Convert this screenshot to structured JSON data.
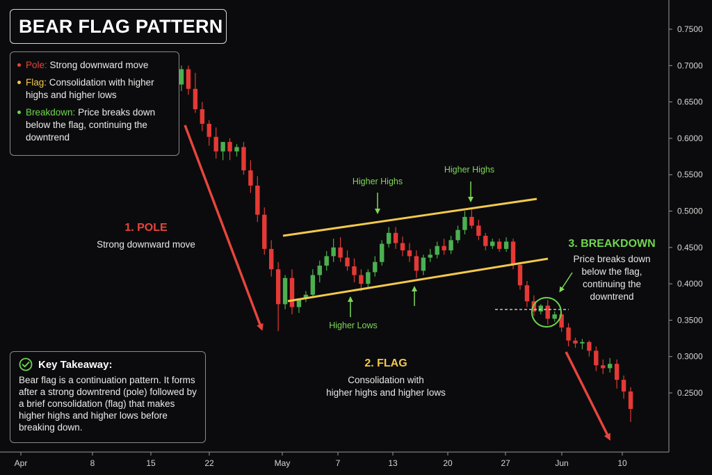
{
  "title": "BEAR FLAG PATTERN",
  "legend": {
    "items": [
      {
        "key": "Pole:",
        "text": "Strong downward move",
        "color": "#e8453c"
      },
      {
        "key": "Flag:",
        "text": "Consolidation with higher highs and higher lows",
        "color": "#f2c94c"
      },
      {
        "key": "Breakdown:",
        "text": "Price breaks down below the flag, continuing the downtrend",
        "color": "#6fd64f"
      }
    ]
  },
  "annotations": {
    "pole": {
      "head": "1. POLE",
      "sub": "Strong downward move",
      "color": "#e8453c"
    },
    "flag": {
      "head": "2. FLAG",
      "sub1": "Consolidation with",
      "sub2": "higher highs and higher lows",
      "color": "#f2c94c"
    },
    "breakdown": {
      "head": "3. BREAKDOWN",
      "sub1": "Price breaks down",
      "sub2": "below the flag,",
      "sub3": "continuing the",
      "sub4": "downtrend",
      "color": "#6fd64f"
    },
    "higher_highs_1": "Higher Highs",
    "higher_highs_2": "Higher Highs",
    "higher_lows": "Higher Lows"
  },
  "takeaway": {
    "head": "Key Takeaway:",
    "body": "Bear flag is a continuation pattern. It forms after a strong downtrend (pole) followed by a brief consolidation (flag) that makes higher highs and higher lows before breaking down."
  },
  "colors": {
    "up": "#4caf50",
    "down": "#e53935",
    "flagline": "#f2c94c",
    "arrow": "#e8453c",
    "accent_green": "#6fd64f",
    "bg": "#0b0b0d"
  },
  "chart_data": {
    "type": "candlestick",
    "x_ticks": [
      "Apr",
      "8",
      "15",
      "22",
      "May",
      "7",
      "13",
      "20",
      "27",
      "Jun",
      "10"
    ],
    "y_ticks": [
      "0.7500",
      "0.7000",
      "0.6500",
      "0.6000",
      "0.5500",
      "0.5000",
      "0.4500",
      "0.4000",
      "0.3500",
      "0.3000",
      "0.2500"
    ],
    "ylim": [
      0.2,
      0.78
    ],
    "grid": false,
    "candles": [
      {
        "o": 0.674,
        "h": 0.7,
        "c": 0.695,
        "l": 0.665
      },
      {
        "o": 0.695,
        "h": 0.7,
        "c": 0.668,
        "l": 0.66
      },
      {
        "o": 0.668,
        "h": 0.69,
        "c": 0.64,
        "l": 0.635
      },
      {
        "o": 0.64,
        "h": 0.65,
        "c": 0.62,
        "l": 0.61
      },
      {
        "o": 0.62,
        "h": 0.625,
        "c": 0.602,
        "l": 0.59
      },
      {
        "o": 0.602,
        "h": 0.615,
        "c": 0.582,
        "l": 0.572
      },
      {
        "o": 0.582,
        "h": 0.595,
        "c": 0.595,
        "l": 0.57
      },
      {
        "o": 0.595,
        "h": 0.6,
        "c": 0.582,
        "l": 0.57
      },
      {
        "o": 0.582,
        "h": 0.592,
        "c": 0.588,
        "l": 0.575
      },
      {
        "o": 0.588,
        "h": 0.595,
        "c": 0.556,
        "l": 0.55
      },
      {
        "o": 0.556,
        "h": 0.57,
        "c": 0.535,
        "l": 0.525
      },
      {
        "o": 0.535,
        "h": 0.548,
        "c": 0.495,
        "l": 0.485
      },
      {
        "o": 0.495,
        "h": 0.505,
        "c": 0.448,
        "l": 0.44
      },
      {
        "o": 0.448,
        "h": 0.46,
        "c": 0.42,
        "l": 0.41
      },
      {
        "o": 0.42,
        "h": 0.43,
        "c": 0.372,
        "l": 0.335
      },
      {
        "o": 0.372,
        "h": 0.412,
        "c": 0.408,
        "l": 0.365
      },
      {
        "o": 0.408,
        "h": 0.42,
        "c": 0.368,
        "l": 0.358
      },
      {
        "o": 0.368,
        "h": 0.38,
        "c": 0.38,
        "l": 0.36
      },
      {
        "o": 0.38,
        "h": 0.39,
        "c": 0.385,
        "l": 0.375
      },
      {
        "o": 0.385,
        "h": 0.42,
        "c": 0.412,
        "l": 0.383
      },
      {
        "o": 0.412,
        "h": 0.432,
        "c": 0.425,
        "l": 0.402
      },
      {
        "o": 0.425,
        "h": 0.445,
        "c": 0.438,
        "l": 0.418
      },
      {
        "o": 0.438,
        "h": 0.462,
        "c": 0.45,
        "l": 0.43
      },
      {
        "o": 0.45,
        "h": 0.464,
        "c": 0.436,
        "l": 0.43
      },
      {
        "o": 0.436,
        "h": 0.446,
        "c": 0.424,
        "l": 0.418
      },
      {
        "o": 0.424,
        "h": 0.435,
        "c": 0.412,
        "l": 0.402
      },
      {
        "o": 0.412,
        "h": 0.42,
        "c": 0.4,
        "l": 0.39
      },
      {
        "o": 0.4,
        "h": 0.42,
        "c": 0.416,
        "l": 0.395
      },
      {
        "o": 0.416,
        "h": 0.438,
        "c": 0.43,
        "l": 0.41
      },
      {
        "o": 0.43,
        "h": 0.46,
        "c": 0.455,
        "l": 0.425
      },
      {
        "o": 0.455,
        "h": 0.478,
        "c": 0.47,
        "l": 0.45
      },
      {
        "o": 0.47,
        "h": 0.478,
        "c": 0.456,
        "l": 0.448
      },
      {
        "o": 0.456,
        "h": 0.465,
        "c": 0.446,
        "l": 0.438
      },
      {
        "o": 0.446,
        "h": 0.456,
        "c": 0.438,
        "l": 0.43
      },
      {
        "o": 0.438,
        "h": 0.446,
        "c": 0.418,
        "l": 0.408
      },
      {
        "o": 0.418,
        "h": 0.44,
        "c": 0.436,
        "l": 0.412
      },
      {
        "o": 0.436,
        "h": 0.448,
        "c": 0.44,
        "l": 0.43
      },
      {
        "o": 0.44,
        "h": 0.458,
        "c": 0.452,
        "l": 0.435
      },
      {
        "o": 0.452,
        "h": 0.462,
        "c": 0.446,
        "l": 0.44
      },
      {
        "o": 0.446,
        "h": 0.466,
        "c": 0.46,
        "l": 0.441
      },
      {
        "o": 0.46,
        "h": 0.48,
        "c": 0.474,
        "l": 0.456
      },
      {
        "o": 0.474,
        "h": 0.5,
        "c": 0.492,
        "l": 0.468
      },
      {
        "o": 0.492,
        "h": 0.502,
        "c": 0.48,
        "l": 0.476
      },
      {
        "o": 0.48,
        "h": 0.488,
        "c": 0.466,
        "l": 0.46
      },
      {
        "o": 0.466,
        "h": 0.47,
        "c": 0.452,
        "l": 0.446
      },
      {
        "o": 0.452,
        "h": 0.462,
        "c": 0.458,
        "l": 0.448
      },
      {
        "o": 0.458,
        "h": 0.462,
        "c": 0.448,
        "l": 0.444
      },
      {
        "o": 0.448,
        "h": 0.464,
        "c": 0.458,
        "l": 0.444
      },
      {
        "o": 0.458,
        "h": 0.462,
        "c": 0.426,
        "l": 0.42
      },
      {
        "o": 0.426,
        "h": 0.43,
        "c": 0.398,
        "l": 0.392
      },
      {
        "o": 0.398,
        "h": 0.404,
        "c": 0.376,
        "l": 0.368
      },
      {
        "o": 0.376,
        "h": 0.384,
        "c": 0.362,
        "l": 0.356
      },
      {
        "o": 0.362,
        "h": 0.372,
        "c": 0.37,
        "l": 0.358
      },
      {
        "o": 0.37,
        "h": 0.378,
        "c": 0.352,
        "l": 0.344
      },
      {
        "o": 0.352,
        "h": 0.362,
        "c": 0.358,
        "l": 0.348
      },
      {
        "o": 0.358,
        "h": 0.36,
        "c": 0.34,
        "l": 0.334
      },
      {
        "o": 0.34,
        "h": 0.346,
        "c": 0.322,
        "l": 0.314
      },
      {
        "o": 0.322,
        "h": 0.326,
        "c": 0.318,
        "l": 0.312
      },
      {
        "o": 0.318,
        "h": 0.324,
        "c": 0.32,
        "l": 0.31
      },
      {
        "o": 0.32,
        "h": 0.322,
        "c": 0.308,
        "l": 0.3
      },
      {
        "o": 0.308,
        "h": 0.314,
        "c": 0.288,
        "l": 0.28
      },
      {
        "o": 0.288,
        "h": 0.296,
        "c": 0.284,
        "l": 0.276
      },
      {
        "o": 0.284,
        "h": 0.298,
        "c": 0.29,
        "l": 0.278
      },
      {
        "o": 0.29,
        "h": 0.296,
        "c": 0.268,
        "l": 0.256
      },
      {
        "o": 0.268,
        "h": 0.274,
        "c": 0.252,
        "l": 0.242
      },
      {
        "o": 0.252,
        "h": 0.258,
        "c": 0.228,
        "l": 0.21
      }
    ],
    "flag_upper_line": [
      [
        0.466,
        0.516
      ]
    ],
    "flag_lower_line": [
      [
        0.375,
        0.433
      ]
    ],
    "breakdown_level": 0.363
  }
}
